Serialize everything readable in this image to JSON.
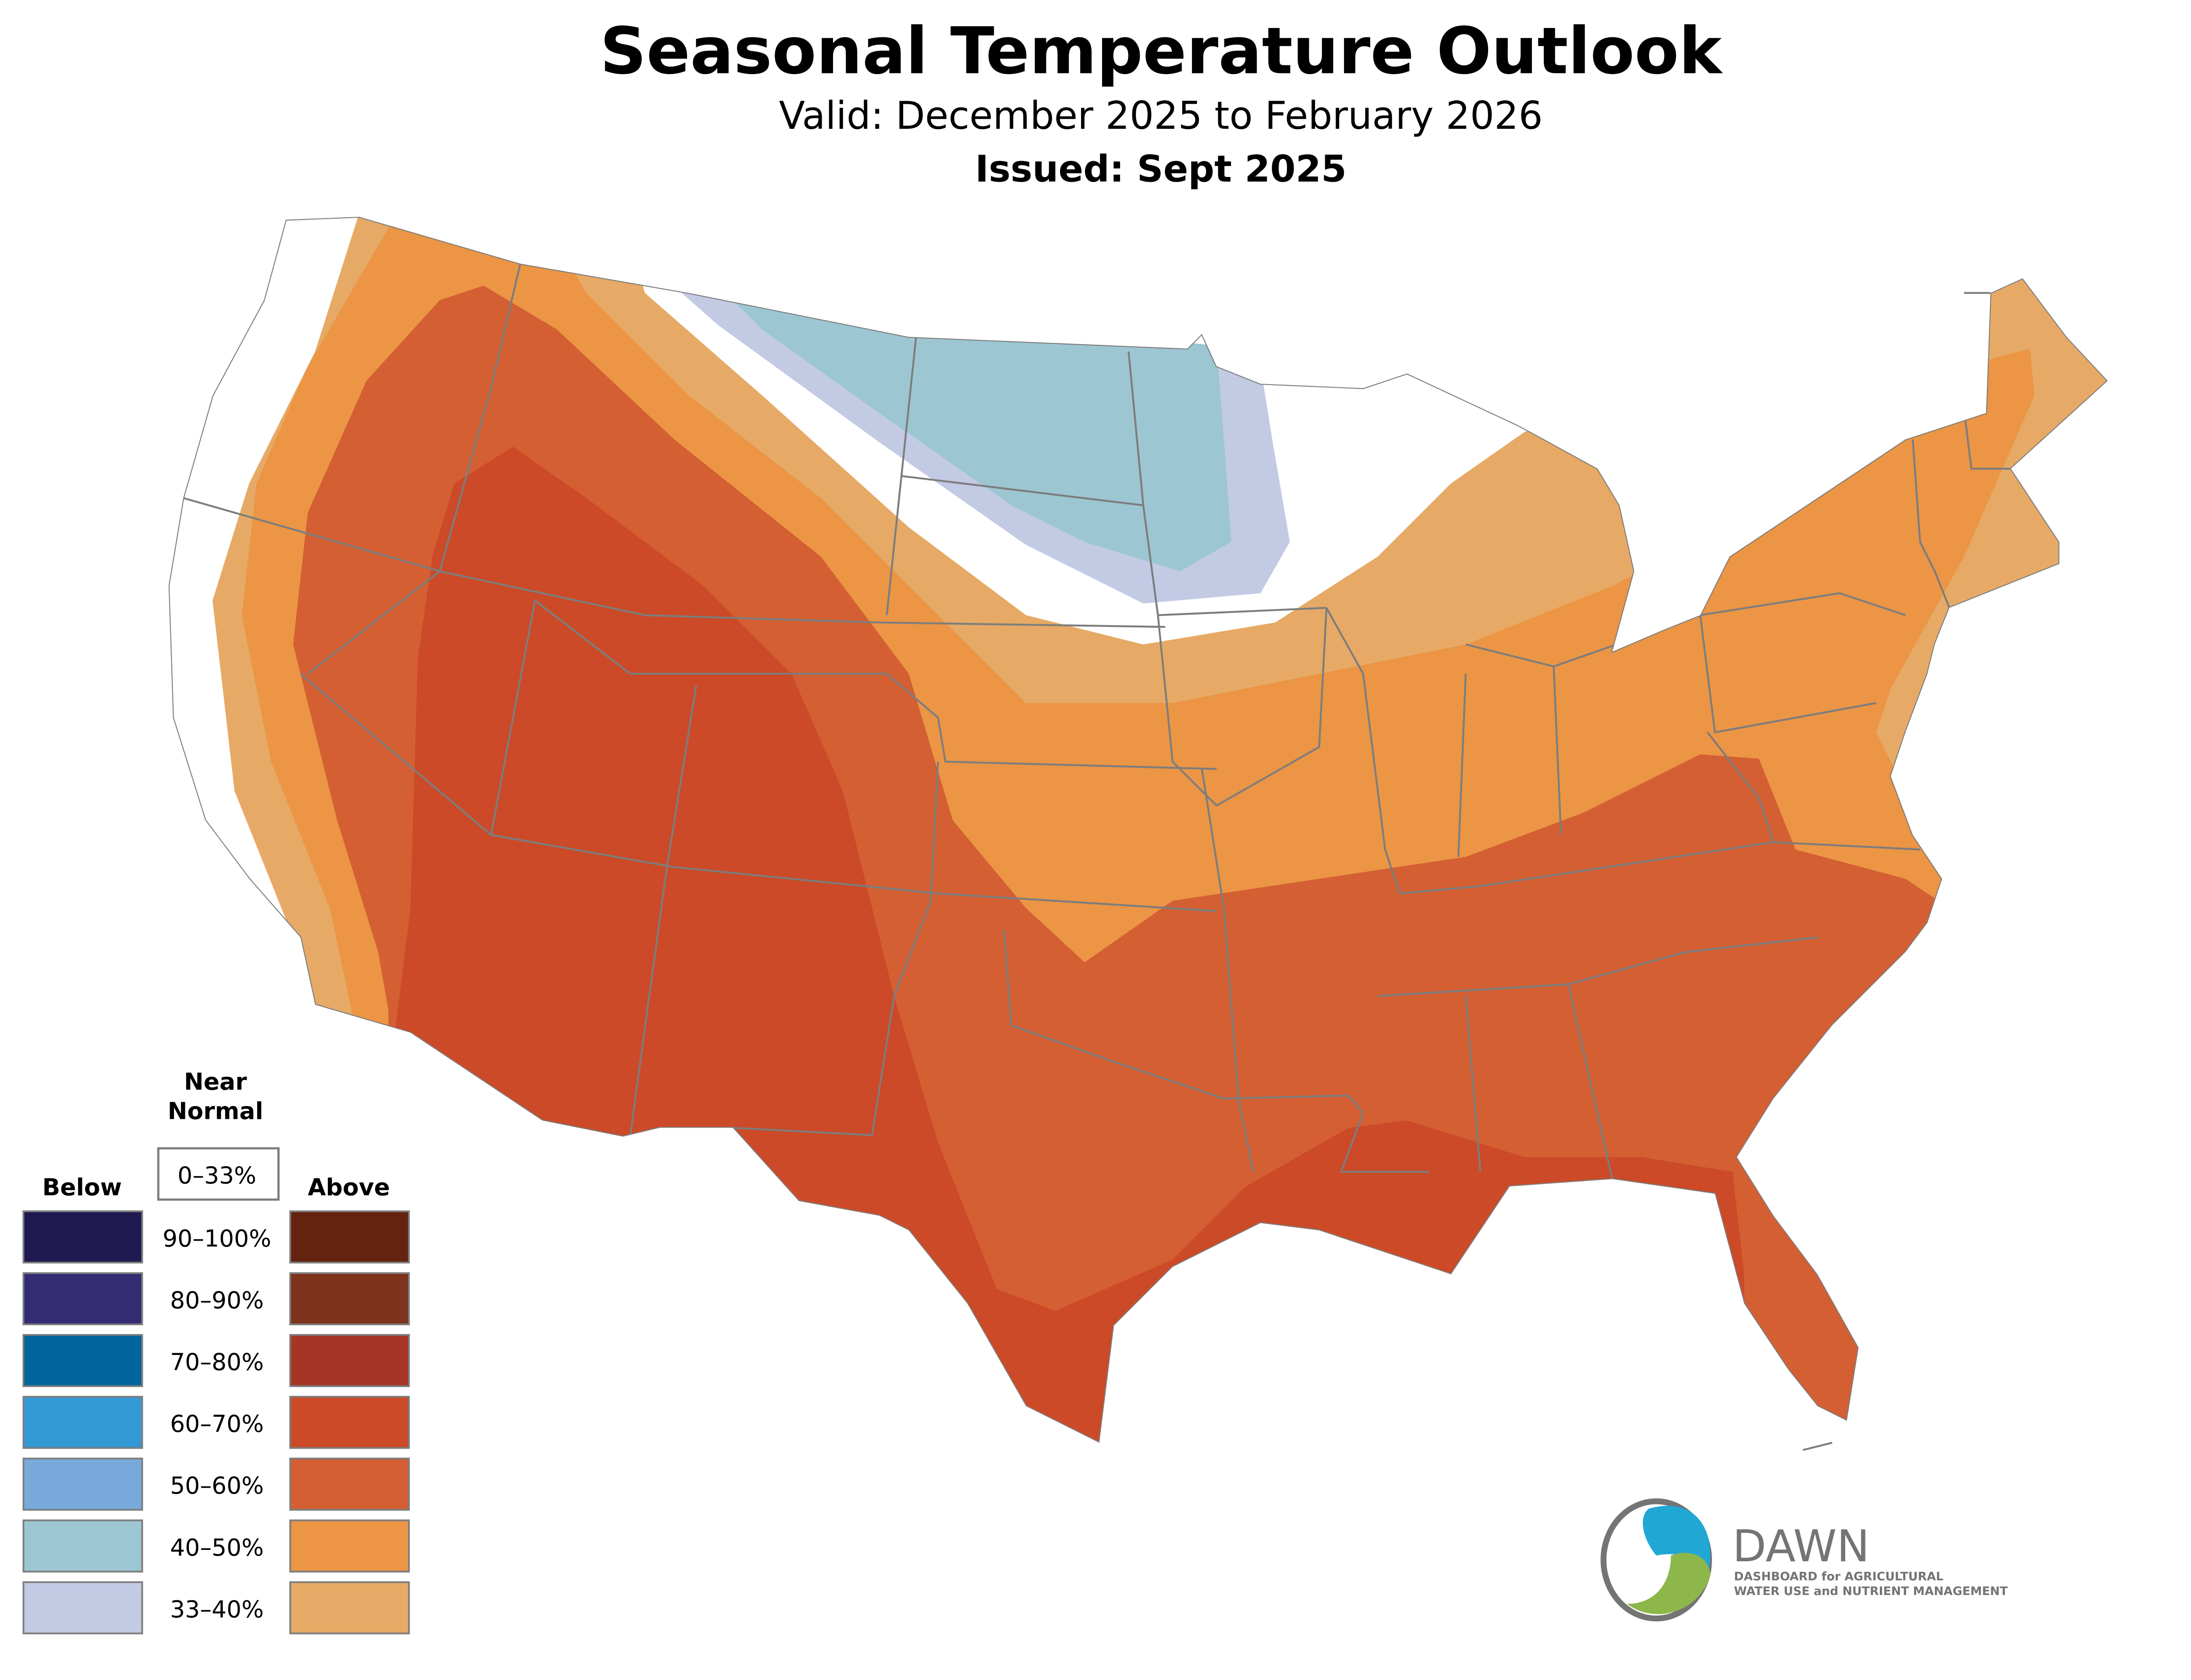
{
  "header": {
    "title": "Seasonal Temperature Outlook",
    "valid": "Valid: December 2025 to February 2026",
    "issued": "Issued: Sept 2025"
  },
  "legend": {
    "below_label": "Below",
    "above_label": "Above",
    "near_normal_line1": "Near",
    "near_normal_line2": "Normal",
    "near_normal_range": "0–33%",
    "near_normal_color": "#ffffff",
    "rows": [
      {
        "range": "90–100%",
        "below_color": "#1f1a4f",
        "above_color": "#642310"
      },
      {
        "range": "80–90%",
        "below_color": "#332c73",
        "above_color": "#7d331c"
      },
      {
        "range": "70–80%",
        "below_color": "#00669d",
        "above_color": "#a73525"
      },
      {
        "range": "60–70%",
        "below_color": "#3399d5",
        "above_color": "#cc4a27"
      },
      {
        "range": "50–60%",
        "below_color": "#77aadb",
        "above_color": "#d45f33"
      },
      {
        "range": "40–50%",
        "below_color": "#9cc6d2",
        "above_color": "#eb9545"
      },
      {
        "range": "33–40%",
        "below_color": "#c3cae4",
        "above_color": "#e6aa66"
      }
    ]
  },
  "map": {
    "regions": [
      {
        "category": "above",
        "range": "33–40%",
        "color": "#e6aa66"
      },
      {
        "category": "above",
        "range": "40–50%",
        "color": "#eb9545"
      },
      {
        "category": "above",
        "range": "50–60%",
        "color": "#d45f33"
      },
      {
        "category": "above",
        "range": "60–70%",
        "color": "#cc4a27"
      },
      {
        "category": "below",
        "range": "33–40%",
        "color": "#c3cae4"
      },
      {
        "category": "below",
        "range": "40–50%",
        "color": "#9cc6d2"
      }
    ],
    "border_color": "#7d7d7d"
  },
  "logo": {
    "name": "DAWN",
    "tagline1": "DASHBOARD for AGRICULTURAL",
    "tagline2": "WATER USE and NUTRIENT MANAGEMENT",
    "blue": "#20a7d3",
    "green": "#8db74a",
    "gray": "#737474"
  }
}
